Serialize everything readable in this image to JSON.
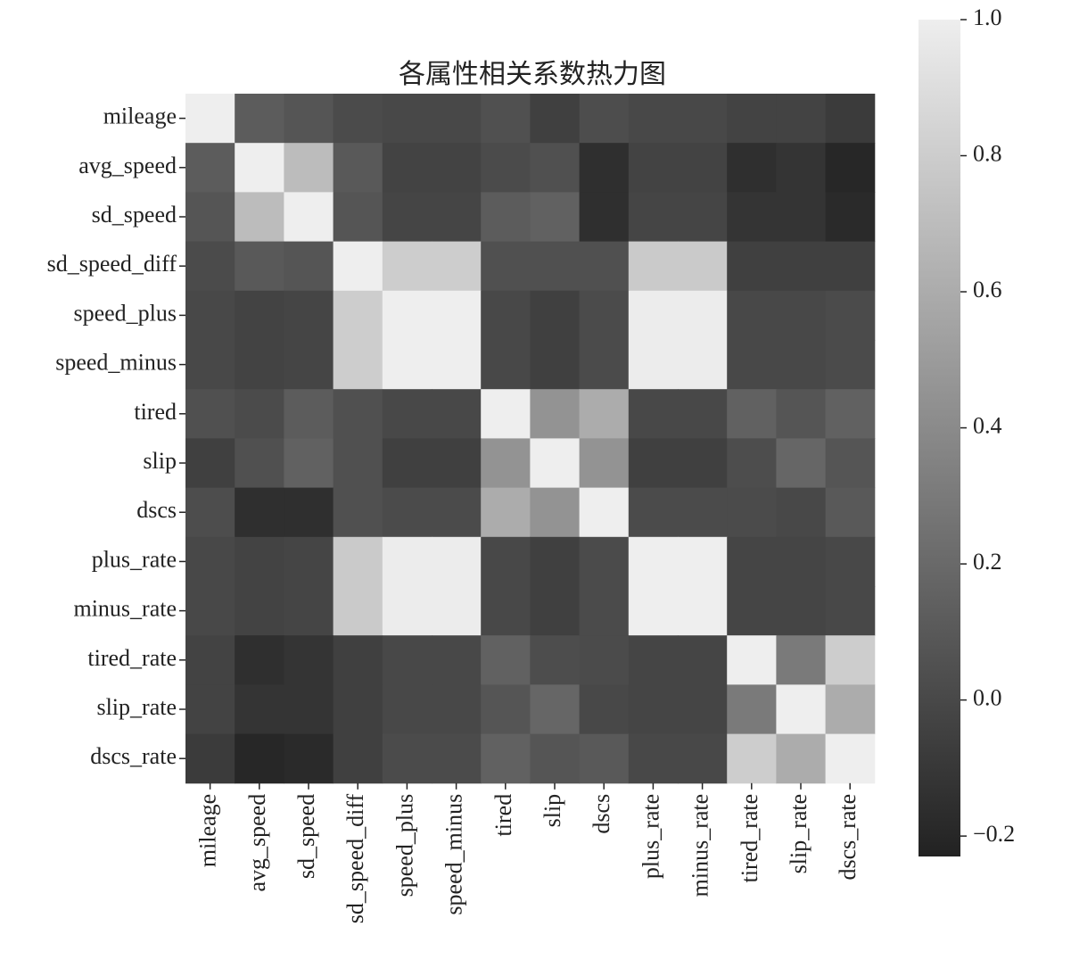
{
  "chart_data": {
    "type": "heatmap",
    "title": "各属性相关系数热力图",
    "categories": [
      "mileage",
      "avg_speed",
      "sd_speed",
      "sd_speed_diff",
      "speed_plus",
      "speed_minus",
      "tired",
      "slip",
      "dscs",
      "plus_rate",
      "minus_rate",
      "tired_rate",
      "slip_rate",
      "dscs_rate"
    ],
    "values": [
      [
        1,
        0.12,
        0.08,
        0.02,
        0.0,
        0.0,
        0.05,
        -0.05,
        0.03,
        0.0,
        0.0,
        -0.03,
        -0.03,
        -0.08
      ],
      [
        0.12,
        1,
        0.7,
        0.1,
        -0.03,
        -0.03,
        0.02,
        0.05,
        -0.15,
        -0.03,
        -0.03,
        -0.15,
        -0.12,
        -0.2
      ],
      [
        0.08,
        0.7,
        1,
        0.08,
        -0.02,
        -0.02,
        0.12,
        0.15,
        -0.15,
        -0.02,
        -0.02,
        -0.12,
        -0.12,
        -0.18
      ],
      [
        0.02,
        0.1,
        0.08,
        1,
        0.8,
        0.8,
        0.05,
        0.05,
        0.05,
        0.78,
        0.78,
        -0.05,
        -0.05,
        -0.05
      ],
      [
        0.0,
        -0.03,
        -0.02,
        0.8,
        1,
        1,
        0.0,
        -0.05,
        0.02,
        0.99,
        0.99,
        0.0,
        0.0,
        0.02
      ],
      [
        0.0,
        -0.03,
        -0.02,
        0.8,
        1,
        1,
        0.0,
        -0.05,
        0.02,
        0.99,
        0.99,
        0.0,
        0.0,
        0.02
      ],
      [
        0.05,
        0.02,
        0.12,
        0.05,
        0.0,
        0.0,
        1,
        0.45,
        0.6,
        0.0,
        0.0,
        0.15,
        0.08,
        0.15
      ],
      [
        -0.05,
        0.05,
        0.15,
        0.05,
        -0.05,
        -0.05,
        0.45,
        1,
        0.45,
        -0.05,
        -0.05,
        0.03,
        0.18,
        0.08
      ],
      [
        0.03,
        -0.15,
        -0.15,
        0.05,
        0.02,
        0.02,
        0.6,
        0.45,
        1,
        0.02,
        0.02,
        0.02,
        0.0,
        0.1
      ],
      [
        0.0,
        -0.03,
        -0.02,
        0.78,
        0.99,
        0.99,
        0.0,
        -0.05,
        0.02,
        1,
        1,
        -0.02,
        -0.02,
        0.0
      ],
      [
        0.0,
        -0.03,
        -0.02,
        0.78,
        0.99,
        0.99,
        0.0,
        -0.05,
        0.02,
        1,
        1,
        -0.02,
        -0.02,
        0.0
      ],
      [
        -0.03,
        -0.15,
        -0.12,
        -0.05,
        0.0,
        0.0,
        0.15,
        0.03,
        0.02,
        -0.02,
        -0.02,
        1,
        0.3,
        0.8
      ],
      [
        -0.03,
        -0.12,
        -0.12,
        -0.05,
        0.0,
        0.0,
        0.08,
        0.18,
        0.0,
        -0.02,
        -0.02,
        0.3,
        1,
        0.6
      ],
      [
        -0.08,
        -0.2,
        -0.18,
        -0.05,
        0.02,
        0.02,
        0.15,
        0.08,
        0.1,
        0.0,
        0.0,
        0.8,
        0.6,
        1
      ]
    ],
    "colors": [
      "#222222",
      "#eeeeee"
    ],
    "zlim": [
      -0.23,
      1.0
    ],
    "zticks": [
      {
        "value": -0.2,
        "label": "−0.2"
      },
      {
        "value": 0,
        "label": "0.0"
      },
      0.2,
      0.4,
      0.6,
      0.8,
      {
        "value": 1.0,
        "label": "1.0"
      }
    ]
  }
}
